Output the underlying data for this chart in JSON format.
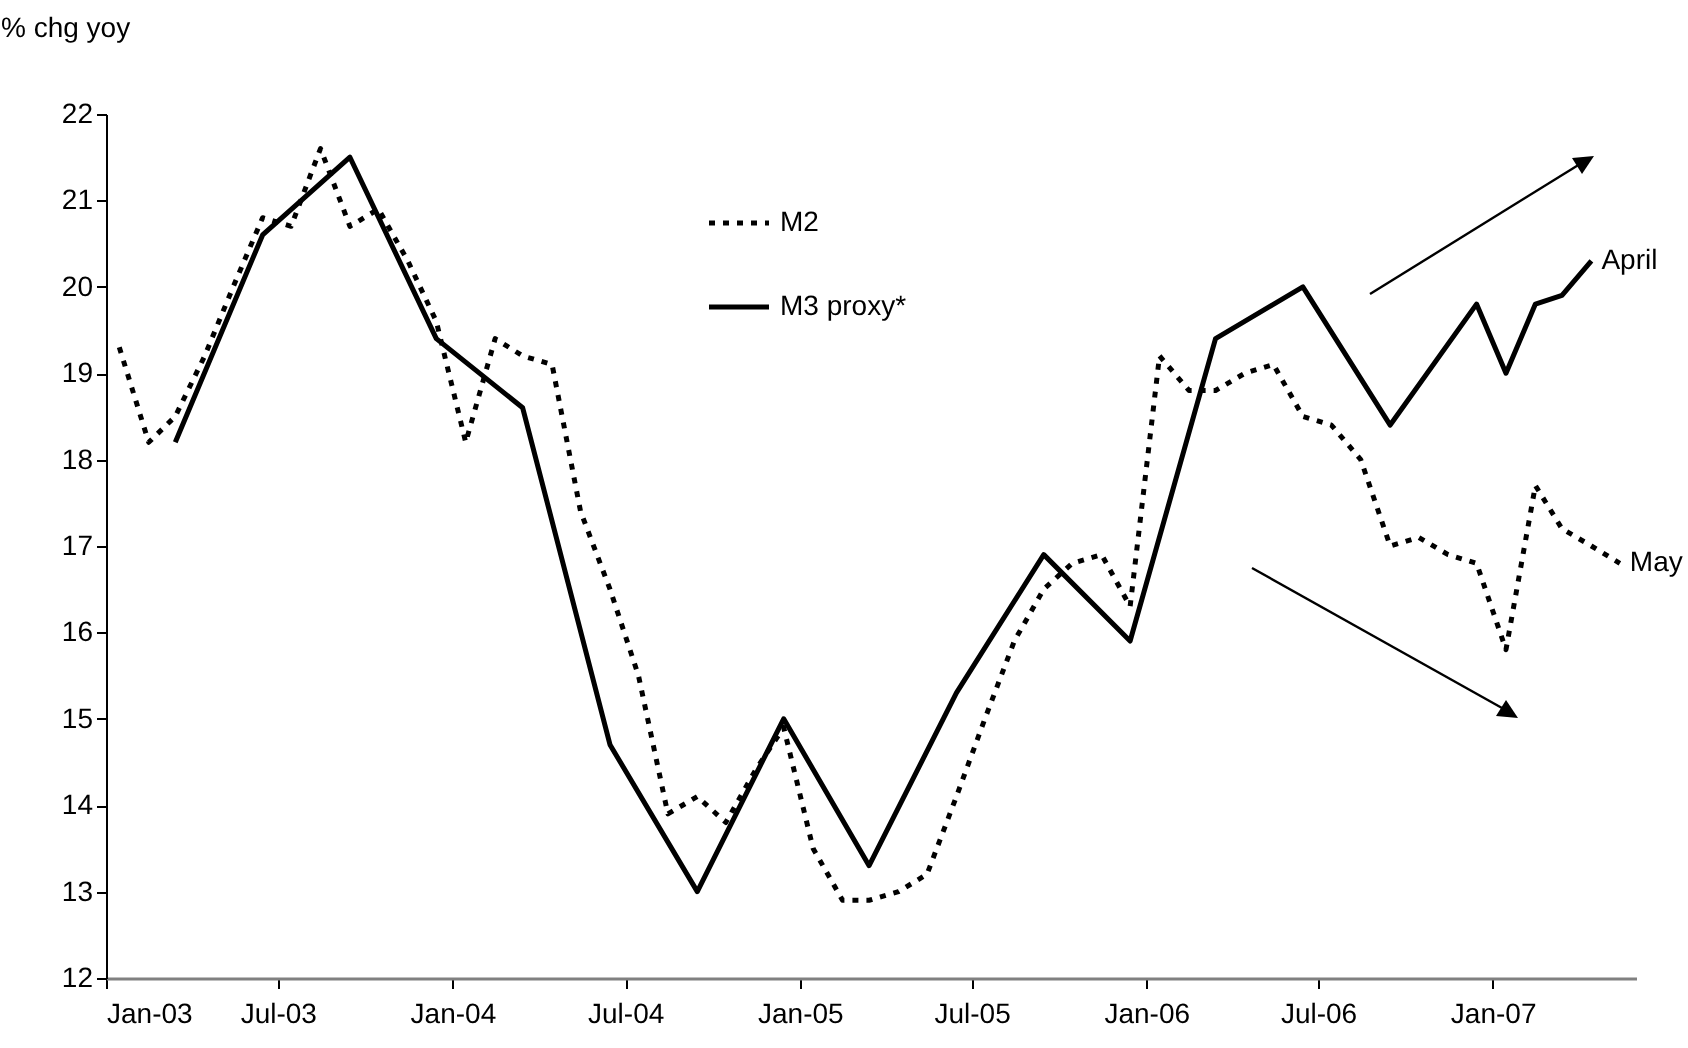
{
  "chart_data": {
    "type": "line",
    "ylabel": "% chg yoy",
    "xlim": [
      "2003-01",
      "2007-06"
    ],
    "xticks": [
      {
        "value": "2003-01",
        "label": "Jan-03"
      },
      {
        "value": "2003-07",
        "label": "Jul-03"
      },
      {
        "value": "2004-01",
        "label": "Jan-04"
      },
      {
        "value": "2004-07",
        "label": "Jul-04"
      },
      {
        "value": "2005-01",
        "label": "Jan-05"
      },
      {
        "value": "2005-07",
        "label": "Jul-05"
      },
      {
        "value": "2006-01",
        "label": "Jan-06"
      },
      {
        "value": "2006-07",
        "label": "Jul-06"
      },
      {
        "value": "2007-01",
        "label": "Jan-07"
      }
    ],
    "ylim": [
      12,
      22
    ],
    "yticks": [
      12,
      13,
      14,
      15,
      16,
      17,
      18,
      19,
      20,
      21,
      22
    ],
    "grid": false,
    "legend": "top",
    "marker": "none",
    "series": [
      {
        "name": "M2",
        "color": "#000000",
        "line_style": "dotted",
        "x": [
          "2003-01-15",
          "2003-02-15",
          "2003-03-15",
          "2003-04-15",
          "2003-05-15",
          "2003-06-15",
          "2003-07-15",
          "2003-08-15",
          "2003-09-15",
          "2003-10-15",
          "2003-11-15",
          "2003-12-15",
          "2004-01-15",
          "2004-02-15",
          "2004-03-15",
          "2004-04-15",
          "2004-05-15",
          "2004-06-15",
          "2004-07-15",
          "2004-08-15",
          "2004-09-15",
          "2004-10-15",
          "2004-11-15",
          "2004-12-15",
          "2005-01-15",
          "2005-02-15",
          "2005-03-15",
          "2005-04-15",
          "2005-05-15",
          "2005-06-15",
          "2005-07-15",
          "2005-08-15",
          "2005-09-15",
          "2005-10-15",
          "2005-11-15",
          "2005-12-15",
          "2006-01-15",
          "2006-02-15",
          "2006-03-15",
          "2006-04-15",
          "2006-05-15",
          "2006-06-15",
          "2006-07-15",
          "2006-08-15",
          "2006-09-15",
          "2006-10-15",
          "2006-11-15",
          "2006-12-15",
          "2007-01-15",
          "2007-02-15",
          "2007-03-15",
          "2007-04-15",
          "2007-05-15"
        ],
        "values": [
          19.3,
          18.2,
          18.5,
          19.2,
          20.0,
          20.8,
          20.7,
          21.6,
          20.7,
          20.9,
          20.3,
          19.6,
          18.2,
          19.4,
          19.2,
          19.1,
          17.4,
          16.5,
          15.5,
          13.9,
          14.1,
          13.8,
          14.4,
          14.9,
          13.5,
          12.9,
          12.9,
          13.0,
          13.2,
          14.1,
          15.0,
          15.9,
          16.5,
          16.8,
          16.9,
          16.3,
          19.2,
          18.8,
          18.8,
          19.0,
          19.1,
          18.5,
          18.4,
          18.0,
          17.0,
          17.1,
          16.9,
          16.8,
          15.8,
          17.7,
          17.2,
          17.0,
          16.8
        ]
      },
      {
        "name": "M3 proxy*",
        "color": "#000000",
        "line_style": "solid",
        "x": [
          "2003-03-15",
          "2003-06-15",
          "2003-09-15",
          "2003-12-15",
          "2004-03-15",
          "2004-06-15",
          "2004-09-15",
          "2004-12-15",
          "2005-03-15",
          "2005-06-15",
          "2005-09-15",
          "2005-12-15",
          "2006-03-15",
          "2006-06-15",
          "2006-09-15",
          "2006-12-15",
          "2007-01-15",
          "2007-02-15",
          "2007-03-15",
          "2007-04-15"
        ],
        "values": [
          18.2,
          20.6,
          21.5,
          19.4,
          18.6,
          14.7,
          13.0,
          15.0,
          13.3,
          15.3,
          16.9,
          15.9,
          19.4,
          20.0,
          18.4,
          19.8,
          19.0,
          19.8,
          19.9,
          20.3
        ]
      }
    ],
    "annotations": [
      {
        "text": "April",
        "x": "2007-04-15",
        "y": 20.3
      },
      {
        "text": "May",
        "x": "2007-05-15",
        "y": 16.8
      }
    ]
  }
}
